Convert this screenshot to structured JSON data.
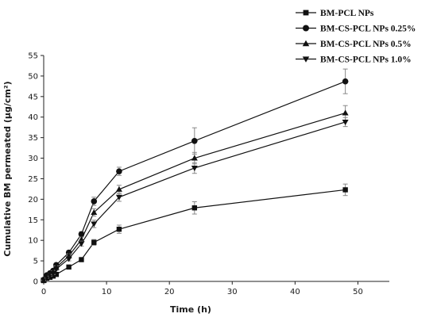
{
  "chart_data": {
    "type": "line",
    "title": "",
    "xlabel": "Time (h)",
    "ylabel": "Cumulative BM permeated (μg/cm²)",
    "xlim": [
      0,
      55
    ],
    "ylim": [
      0,
      55
    ],
    "xticks": [
      "0",
      "10",
      "20",
      "30",
      "40",
      "50"
    ],
    "yticks": [
      "0",
      "5",
      "10",
      "15",
      "20",
      "25",
      "30",
      "35",
      "40",
      "45",
      "50",
      "55"
    ],
    "x": [
      0,
      0.5,
      1,
      1.5,
      2,
      4,
      6,
      8,
      12,
      24,
      48
    ],
    "legend_position": "top-right",
    "grid": false,
    "series": [
      {
        "name": "BM-PCL NPs",
        "marker": "square",
        "color": "#111111",
        "values": [
          0.2,
          0.8,
          1.0,
          1.3,
          1.7,
          3.5,
          5.3,
          9.5,
          12.7,
          17.9,
          22.3
        ],
        "errors": [
          0.1,
          0.2,
          0.2,
          0.2,
          0.3,
          0.4,
          0.5,
          0.7,
          1.0,
          1.5,
          1.4
        ]
      },
      {
        "name": "BM-CS-PCL NPs 0.25%",
        "marker": "circle",
        "color": "#111111",
        "values": [
          0.4,
          1.5,
          2.0,
          2.6,
          4.0,
          7.0,
          11.5,
          19.5,
          26.8,
          34.2,
          48.7
        ],
        "errors": [
          0.1,
          0.3,
          0.3,
          0.3,
          0.4,
          0.5,
          0.6,
          1.0,
          1.0,
          3.2,
          3.0
        ]
      },
      {
        "name": "BM-CS-PCL NPs 0.5%",
        "marker": "triangle-up",
        "color": "#111111",
        "values": [
          0.3,
          1.2,
          1.7,
          2.3,
          3.4,
          6.2,
          10.2,
          16.8,
          22.4,
          30.0,
          41.0
        ],
        "errors": [
          0.1,
          0.2,
          0.3,
          0.3,
          0.4,
          0.5,
          0.6,
          0.9,
          1.0,
          1.4,
          1.8
        ]
      },
      {
        "name": "BM-CS-PCL NPs 1.0%",
        "marker": "triangle-down",
        "color": "#111111",
        "values": [
          0.3,
          1.0,
          1.5,
          2.0,
          3.0,
          5.5,
          9.2,
          14.0,
          20.5,
          27.6,
          38.8
        ],
        "errors": [
          0.1,
          0.2,
          0.2,
          0.3,
          0.3,
          0.5,
          0.6,
          0.9,
          1.0,
          1.3,
          1.1
        ]
      }
    ]
  }
}
